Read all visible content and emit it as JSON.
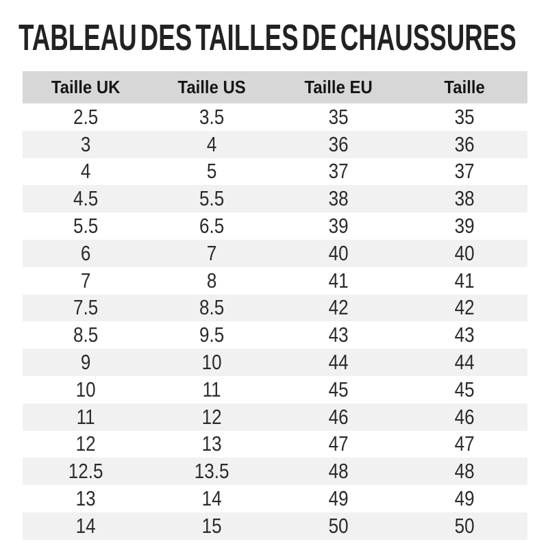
{
  "page_title": "TABLEAU DES TAILLES DE CHAUSSURES",
  "colors": {
    "background": "#ffffff",
    "title_text": "#222222",
    "header_row_bg": "#d7d7d7",
    "header_text": "#151515",
    "alt_row_bg": "#f1f1f1",
    "cell_text": "#2b2b2b"
  },
  "chart_data": {
    "type": "table",
    "title": "TABLEAU DES TAILLES DE CHAUSSURES",
    "columns": [
      "Taille UK",
      "Taille US",
      "Taille EU",
      "Taille"
    ],
    "rows": [
      [
        "2.5",
        "3.5",
        "35",
        "35"
      ],
      [
        "3",
        "4",
        "36",
        "36"
      ],
      [
        "4",
        "5",
        "37",
        "37"
      ],
      [
        "4.5",
        "5.5",
        "38",
        "38"
      ],
      [
        "5.5",
        "6.5",
        "39",
        "39"
      ],
      [
        "6",
        "7",
        "40",
        "40"
      ],
      [
        "7",
        "8",
        "41",
        "41"
      ],
      [
        "7.5",
        "8.5",
        "42",
        "42"
      ],
      [
        "8.5",
        "9.5",
        "43",
        "43"
      ],
      [
        "9",
        "10",
        "44",
        "44"
      ],
      [
        "10",
        "11",
        "45",
        "45"
      ],
      [
        "11",
        "12",
        "46",
        "46"
      ],
      [
        "12",
        "13",
        "47",
        "47"
      ],
      [
        "12.5",
        "13.5",
        "48",
        "48"
      ],
      [
        "13",
        "14",
        "49",
        "49"
      ],
      [
        "14",
        "15",
        "50",
        "50"
      ]
    ],
    "layout": {
      "zebra_striping": true,
      "first_data_row_background": "white",
      "header_background": "#d7d7d7"
    }
  }
}
